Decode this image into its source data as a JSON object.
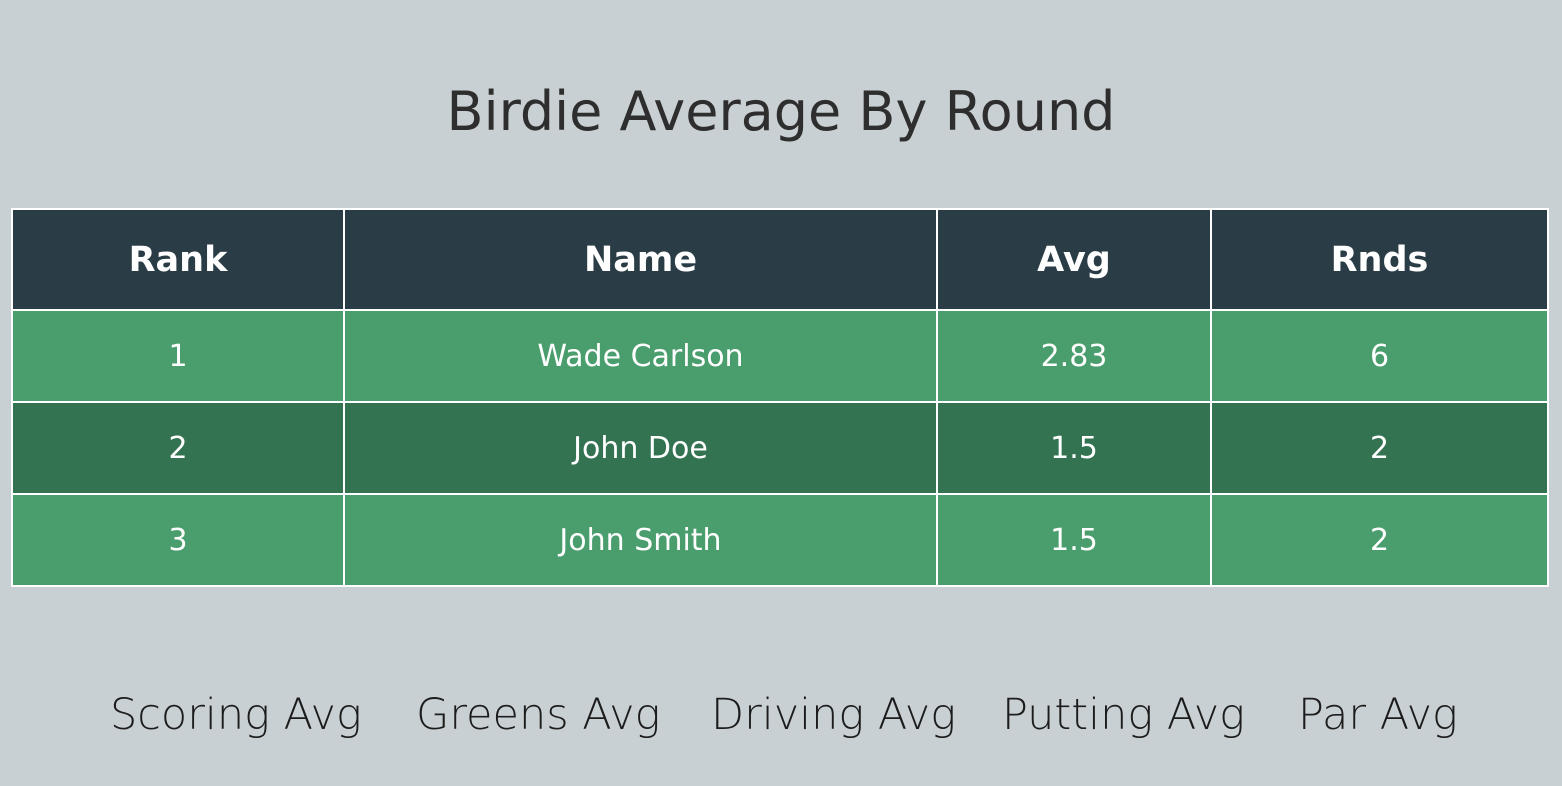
{
  "page": {
    "title": "Birdie Average By Round"
  },
  "table": {
    "headers": [
      "Rank",
      "Name",
      "Avg",
      "Rnds"
    ],
    "rows": [
      {
        "rank": "1",
        "name": "Wade Carlson",
        "avg": "2.83",
        "rnds": "6"
      },
      {
        "rank": "2",
        "name": "John Doe",
        "avg": "1.5",
        "rnds": "2"
      },
      {
        "rank": "3",
        "name": "John Smith",
        "avg": "1.5",
        "rnds": "2"
      }
    ]
  },
  "nav": {
    "items": [
      "Scoring Avg",
      "Greens Avg",
      "Driving Avg",
      "Putting Avg",
      "Par Avg"
    ]
  },
  "colors": {
    "background": "#c9d0d3",
    "header": "#2a3d47",
    "row_light": "#4a9e6d",
    "row_dark": "#337351"
  }
}
